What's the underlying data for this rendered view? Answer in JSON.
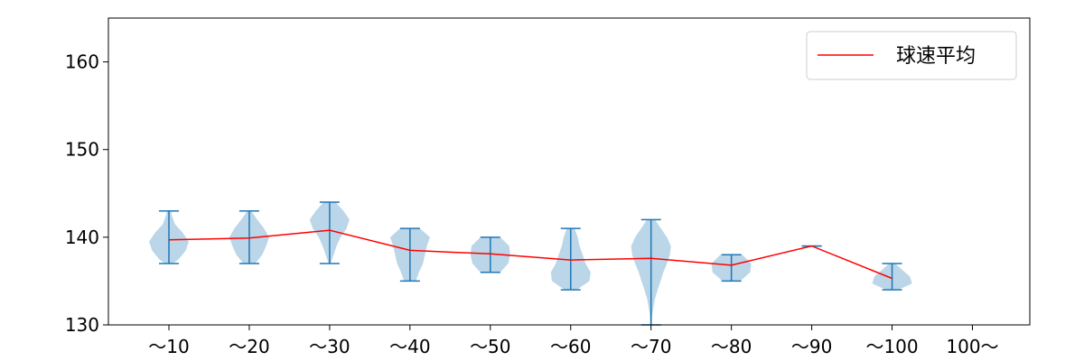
{
  "chart_data": {
    "type": "violin",
    "categories": [
      "〜10",
      "〜20",
      "〜30",
      "〜40",
      "〜50",
      "〜60",
      "〜70",
      "〜80",
      "〜90",
      "〜100",
      "100〜"
    ],
    "y_ticks": [
      130,
      140,
      150,
      160
    ],
    "ylim": [
      130,
      165
    ],
    "grid": false,
    "legend": {
      "placement": "top-right",
      "entries": [
        {
          "label": "球速平均",
          "color": "#ff0000"
        }
      ]
    },
    "colors": {
      "violin_fill": "#1f77b4",
      "violin_fill_opacity": 0.3,
      "whisker": "#1f77b4",
      "mean_line": "#ff0000",
      "axis": "#000000"
    },
    "series": [
      {
        "name": "球速平均",
        "type": "line",
        "values": [
          139.7,
          139.9,
          140.8,
          138.5,
          138.1,
          137.4,
          137.6,
          136.8,
          139.0,
          135.3,
          null
        ]
      }
    ],
    "distributions": [
      {
        "min": 137,
        "max": 143,
        "profile": [
          [
            137,
            0.2
          ],
          [
            137.5,
            0.5
          ],
          [
            138.5,
            0.85
          ],
          [
            139.5,
            1.0
          ],
          [
            140.5,
            0.7
          ],
          [
            141.5,
            0.3
          ],
          [
            142.5,
            0.15
          ],
          [
            143,
            0.1
          ]
        ]
      },
      {
        "min": 137,
        "max": 143,
        "profile": [
          [
            137,
            0.3
          ],
          [
            138,
            0.65
          ],
          [
            139,
            0.85
          ],
          [
            140,
            1.0
          ],
          [
            141,
            0.75
          ],
          [
            142,
            0.4
          ],
          [
            143,
            0.1
          ]
        ]
      },
      {
        "min": 137,
        "max": 144,
        "profile": [
          [
            137,
            0.05
          ],
          [
            138,
            0.2
          ],
          [
            139,
            0.35
          ],
          [
            140,
            0.55
          ],
          [
            141,
            0.85
          ],
          [
            142,
            1.0
          ],
          [
            143,
            0.7
          ],
          [
            144,
            0.3
          ]
        ]
      },
      {
        "min": 135,
        "max": 141,
        "profile": [
          [
            135,
            0.3
          ],
          [
            136,
            0.45
          ],
          [
            137,
            0.65
          ],
          [
            138,
            0.75
          ],
          [
            139,
            0.85
          ],
          [
            140,
            1.0
          ],
          [
            141,
            0.5
          ]
        ]
      },
      {
        "min": 136,
        "max": 140,
        "profile": [
          [
            136,
            0.5
          ],
          [
            137,
            0.9
          ],
          [
            138,
            1.0
          ],
          [
            139,
            0.95
          ],
          [
            140,
            0.5
          ]
        ]
      },
      {
        "min": 134,
        "max": 141,
        "profile": [
          [
            134,
            0.3
          ],
          [
            135,
            0.95
          ],
          [
            136,
            1.0
          ],
          [
            137,
            0.75
          ],
          [
            138,
            0.6
          ],
          [
            139,
            0.45
          ],
          [
            140,
            0.35
          ],
          [
            141,
            0.2
          ]
        ]
      },
      {
        "min": 130,
        "max": 142,
        "profile": [
          [
            130,
            0.04
          ],
          [
            131,
            0.06
          ],
          [
            132,
            0.12
          ],
          [
            133,
            0.2
          ],
          [
            134,
            0.33
          ],
          [
            135,
            0.48
          ],
          [
            136,
            0.62
          ],
          [
            137,
            0.8
          ],
          [
            138,
            0.95
          ],
          [
            139,
            1.0
          ],
          [
            140,
            0.8
          ],
          [
            141,
            0.5
          ],
          [
            142,
            0.2
          ]
        ]
      },
      {
        "min": 135,
        "max": 138,
        "profile": [
          [
            135,
            0.45
          ],
          [
            136,
            0.95
          ],
          [
            137,
            1.0
          ],
          [
            138,
            0.55
          ]
        ]
      },
      {
        "min": 139,
        "max": 139,
        "profile": []
      },
      {
        "min": 134,
        "max": 137,
        "profile": [
          [
            134,
            0.3
          ],
          [
            134.7,
            1.0
          ],
          [
            135.5,
            0.9
          ],
          [
            136.5,
            0.4
          ],
          [
            137,
            0.15
          ]
        ]
      },
      null
    ]
  }
}
